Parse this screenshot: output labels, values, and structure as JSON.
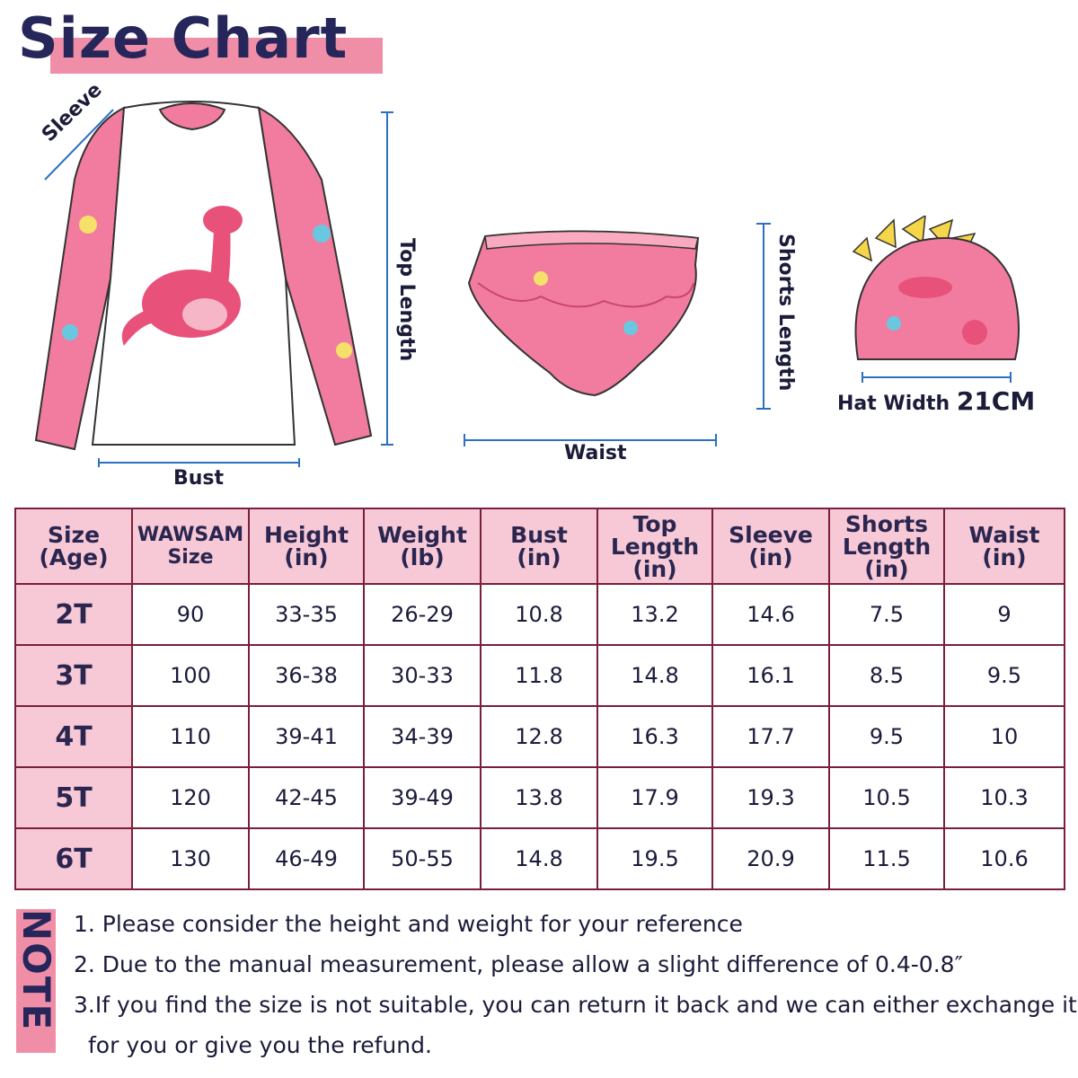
{
  "title": "Size Chart",
  "labels": {
    "sleeve": "Sleeve",
    "top_length": "Top Length",
    "bust": "Bust",
    "waist": "Waist",
    "shorts_length": "Shorts Length",
    "hat_width_label": "Hat Width",
    "hat_width_value": "21CM"
  },
  "colors": {
    "accent_pink": "#f08ea8",
    "header_pink": "#f7c8d6",
    "navy": "#26265a",
    "arrow_blue": "#2d6fc0"
  },
  "table": {
    "headers": [
      [
        "Size",
        "(Age)"
      ],
      [
        "WAWSAM",
        "Size"
      ],
      [
        "Height",
        "(in)"
      ],
      [
        "Weight",
        "(lb)"
      ],
      [
        "Bust",
        "(in)"
      ],
      [
        "Top",
        "Length",
        "(in)"
      ],
      [
        "Sleeve",
        "(in)"
      ],
      [
        "Shorts",
        "Length",
        "(in)"
      ],
      [
        "Waist",
        "(in)"
      ]
    ],
    "rows": [
      [
        "2T",
        "90",
        "33-35",
        "26-29",
        "10.8",
        "13.2",
        "14.6",
        "7.5",
        "9"
      ],
      [
        "3T",
        "100",
        "36-38",
        "30-33",
        "11.8",
        "14.8",
        "16.1",
        "8.5",
        "9.5"
      ],
      [
        "4T",
        "110",
        "39-41",
        "34-39",
        "12.8",
        "16.3",
        "17.7",
        "9.5",
        "10"
      ],
      [
        "5T",
        "120",
        "42-45",
        "39-49",
        "13.8",
        "17.9",
        "19.3",
        "10.5",
        "10.3"
      ],
      [
        "6T",
        "130",
        "46-49",
        "50-55",
        "14.8",
        "19.5",
        "20.9",
        "11.5",
        "10.6"
      ]
    ]
  },
  "note": {
    "heading": "NOTE",
    "lines": [
      "1. Please consider the height and weight for your reference",
      "2. Due to the manual measurement, please allow a slight difference of 0.4-0.8″",
      "3.If you find the size is not suitable, you can return it back and we can either exchange it",
      "for you or give you the refund."
    ]
  }
}
